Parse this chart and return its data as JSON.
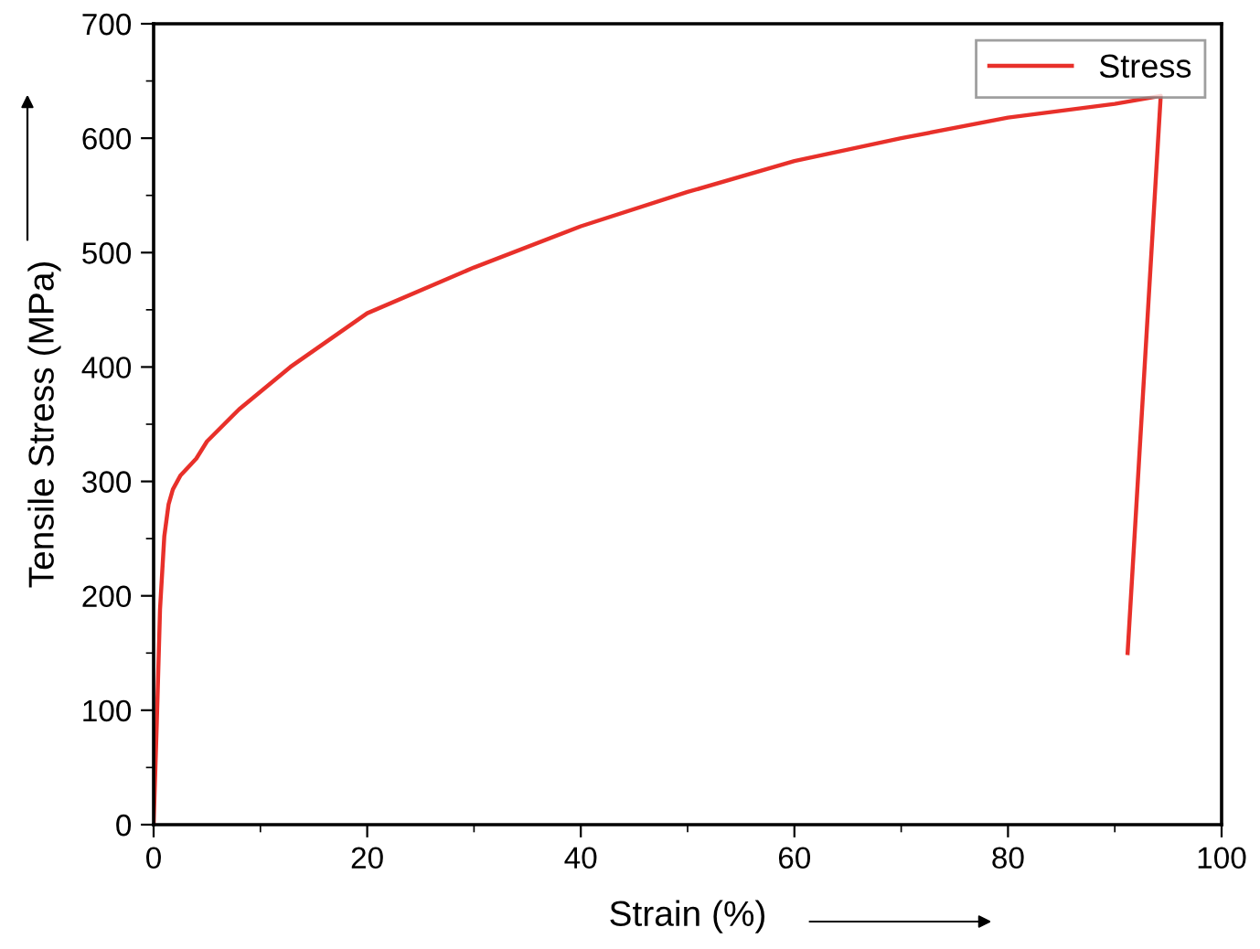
{
  "chart_data": {
    "type": "line",
    "xlabel": "Strain (%)",
    "ylabel": "Tensile Stress (MPa)",
    "xlim": [
      0,
      100
    ],
    "ylim": [
      0,
      700
    ],
    "xticks": [
      0,
      20,
      40,
      60,
      80,
      100
    ],
    "yticks": [
      0,
      100,
      200,
      300,
      400,
      500,
      600,
      700
    ],
    "grid": false,
    "legend": "top right",
    "marker": "none",
    "line_style": "solid",
    "series": [
      {
        "name": "Stress",
        "color": "#e8302a",
        "x": [
          0,
          0.3,
          0.6,
          1.0,
          1.4,
          1.8,
          2.5,
          4,
          5,
          8,
          12.8,
          20,
          30,
          40,
          50,
          60,
          70,
          80,
          90,
          94.3,
          91.2
        ],
        "values": [
          0,
          90,
          188,
          252,
          280,
          293,
          305,
          320,
          335,
          363,
          400,
          447,
          487,
          523,
          553,
          580,
          600,
          618,
          630,
          637,
          150
        ]
      }
    ]
  }
}
